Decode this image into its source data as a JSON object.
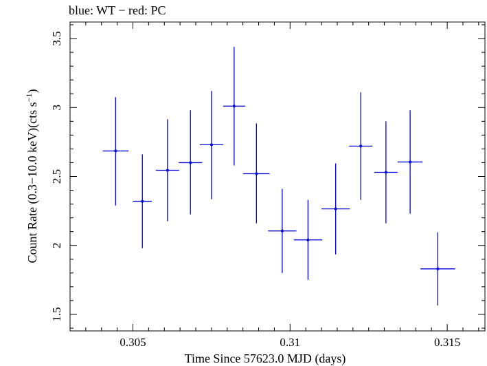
{
  "chart_data": {
    "type": "scatter",
    "title": "blue: WT − red: PC",
    "xlabel": "Time Since 57623.0 MJD (days)",
    "ylabel": "Count Rate (0.3−10.0 keV)(cts s",
    "ylabel_sup": "−1",
    "ylabel_end": ")",
    "xlim": [
      0.303,
      0.3162
    ],
    "ylim": [
      1.38,
      3.62
    ],
    "x_ticks": [
      0.305,
      0.31,
      0.315
    ],
    "x_tick_labels": [
      "0.305",
      "0.31",
      "0.315"
    ],
    "y_ticks": [
      1.5,
      2,
      2.5,
      3,
      3.5
    ],
    "y_tick_labels": [
      "1.5",
      "2",
      "2.5",
      "3",
      "3.5"
    ],
    "grid": false,
    "series": [
      {
        "color": "#0000dd",
        "points": [
          {
            "x": 0.30445,
            "xerr": 0.00041,
            "y": 2.685,
            "yerr_low": 0.395,
            "yerr_high": 0.39
          },
          {
            "x": 0.3053,
            "xerr": 0.0003,
            "y": 2.32,
            "yerr_low": 0.34,
            "yerr_high": 0.34
          },
          {
            "x": 0.3061,
            "xerr": 0.00037,
            "y": 2.545,
            "yerr_low": 0.37,
            "yerr_high": 0.37
          },
          {
            "x": 0.30683,
            "xerr": 0.00037,
            "y": 2.6,
            "yerr_low": 0.375,
            "yerr_high": 0.38
          },
          {
            "x": 0.3075,
            "xerr": 0.00037,
            "y": 2.73,
            "yerr_low": 0.395,
            "yerr_high": 0.39
          },
          {
            "x": 0.30822,
            "xerr": 0.00035,
            "y": 3.01,
            "yerr_low": 0.43,
            "yerr_high": 0.43
          },
          {
            "x": 0.30893,
            "xerr": 0.00042,
            "y": 2.52,
            "yerr_low": 0.36,
            "yerr_high": 0.365
          },
          {
            "x": 0.30975,
            "xerr": 0.00045,
            "y": 2.105,
            "yerr_low": 0.305,
            "yerr_high": 0.305
          },
          {
            "x": 0.31057,
            "xerr": 0.00045,
            "y": 2.04,
            "yerr_low": 0.29,
            "yerr_high": 0.29
          },
          {
            "x": 0.31145,
            "xerr": 0.00045,
            "y": 2.265,
            "yerr_low": 0.33,
            "yerr_high": 0.33
          },
          {
            "x": 0.31225,
            "xerr": 0.00037,
            "y": 2.72,
            "yerr_low": 0.39,
            "yerr_high": 0.39
          },
          {
            "x": 0.31305,
            "xerr": 0.00037,
            "y": 2.53,
            "yerr_low": 0.37,
            "yerr_high": 0.37
          },
          {
            "x": 0.31382,
            "xerr": 0.0004,
            "y": 2.605,
            "yerr_low": 0.375,
            "yerr_high": 0.375
          },
          {
            "x": 0.3147,
            "xerr": 0.00055,
            "y": 1.83,
            "yerr_low": 0.265,
            "yerr_high": 0.265
          }
        ]
      }
    ]
  }
}
